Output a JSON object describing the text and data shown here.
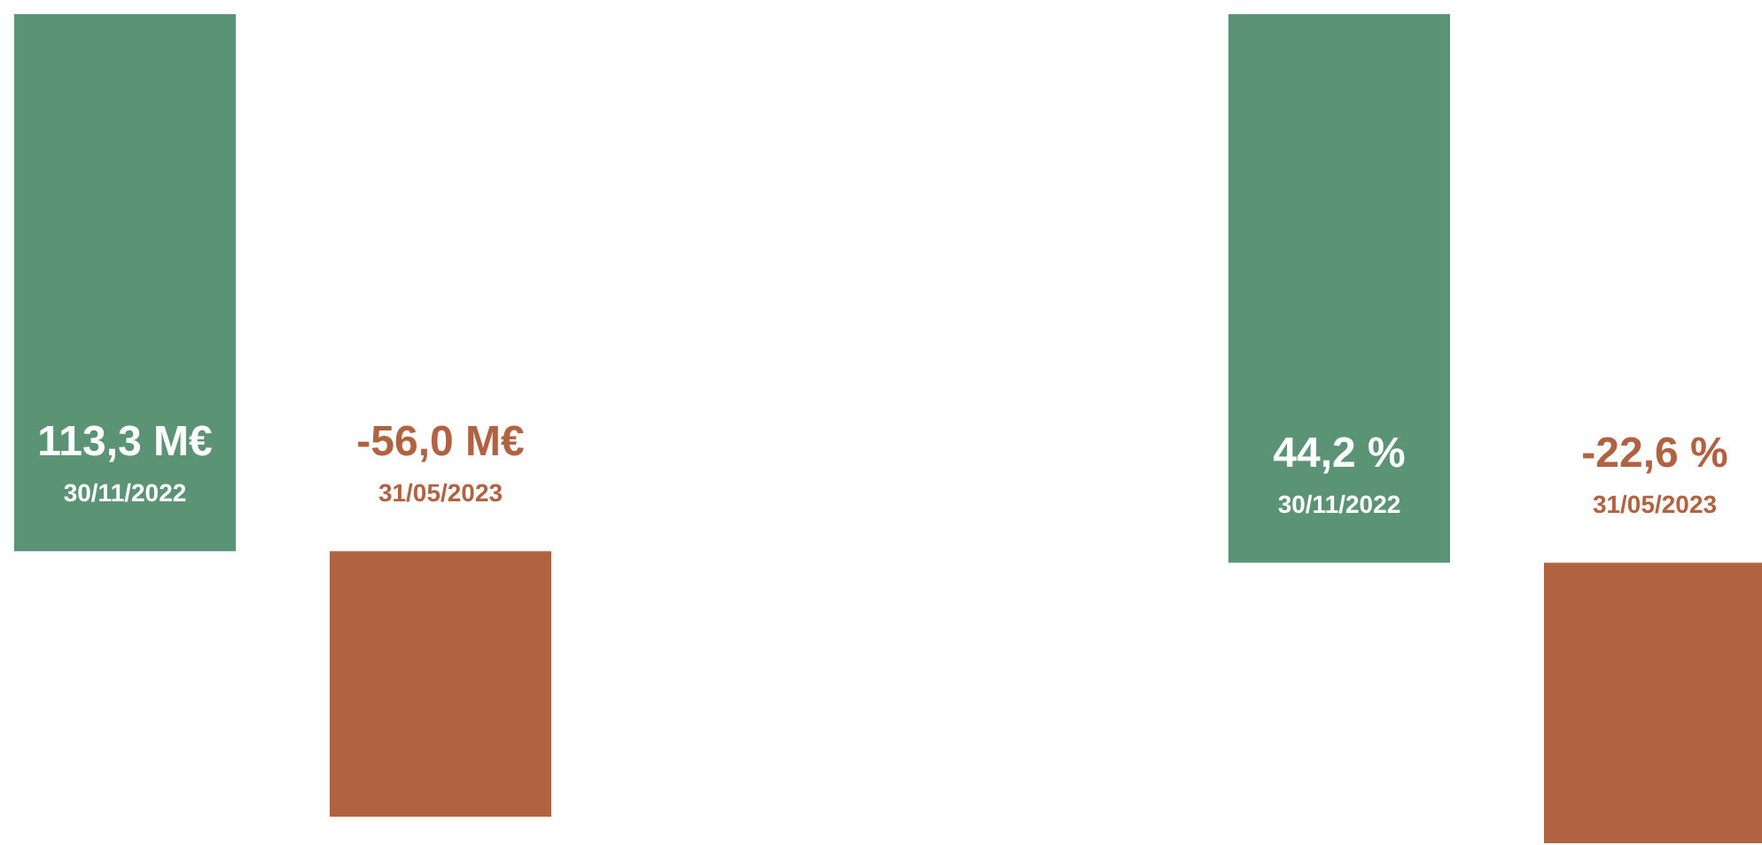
{
  "chart_data": [
    {
      "type": "bar",
      "categories": [
        "30/11/2022",
        "31/05/2023"
      ],
      "values": [
        113.3,
        -56.0
      ],
      "colors": [
        "#5b9474",
        "#b06241"
      ],
      "value_labels": [
        "113,3 M€",
        "-56,0 M€"
      ]
    },
    {
      "type": "bar",
      "categories": [
        "30/11/2022",
        "31/05/2023"
      ],
      "values": [
        44.2,
        -22.6
      ],
      "colors": [
        "#5b9474",
        "#b06241"
      ],
      "value_labels": [
        "44,2 %",
        "-22,6 %"
      ]
    }
  ]
}
